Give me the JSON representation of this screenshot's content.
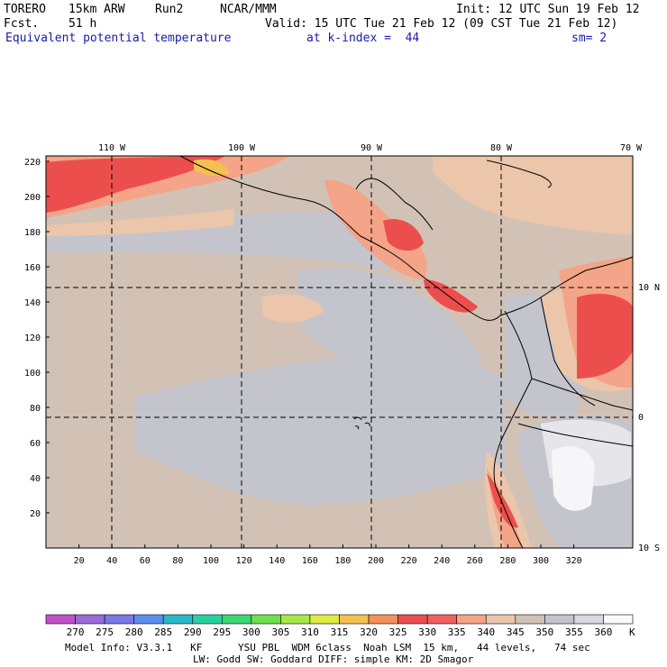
{
  "header": {
    "model": "TORERO",
    "resolution": "15km ARW",
    "run": "Run2",
    "org": "NCAR/MMM",
    "init": "Init: 12 UTC Sun 19 Feb 12",
    "fcst_label": "Fcst.",
    "fcst_value": "51 h",
    "valid": "Valid: 15 UTC Tue 21 Feb 12 (09 CST Tue 21 Feb 12)",
    "field": "Equivalent potential temperature",
    "level": "at k-index =  44",
    "smoothing": "sm= 2"
  },
  "map": {
    "lon_labels": [
      "110 W",
      "100 W",
      "90 W",
      "80 W",
      "70 W"
    ],
    "lat_labels": [
      "10 N",
      "0",
      "10 S"
    ],
    "x_ticks": [
      "20",
      "40",
      "60",
      "80",
      "100",
      "120",
      "140",
      "160",
      "180",
      "200",
      "220",
      "240",
      "260",
      "280",
      "300",
      "320"
    ],
    "y_ticks": [
      "20",
      "40",
      "60",
      "80",
      "100",
      "120",
      "140",
      "160",
      "180",
      "200",
      "220"
    ]
  },
  "colorbar": {
    "labels": [
      "270",
      "275",
      "280",
      "285",
      "290",
      "295",
      "300",
      "305",
      "310",
      "315",
      "320",
      "325",
      "330",
      "335",
      "340",
      "345",
      "350",
      "355",
      "360"
    ],
    "unit": "K",
    "colors": [
      "#c050c8",
      "#9a6ad8",
      "#7a78e6",
      "#5a8ef0",
      "#2ab8c8",
      "#28d0a0",
      "#3ad872",
      "#6ee050",
      "#a6e848",
      "#dcec44",
      "#f4c050",
      "#f4905a",
      "#ec4e4e",
      "#f06060",
      "#f4a488",
      "#ecc6aa",
      "#d2c2b6",
      "#c4c4cc",
      "#d8d8de",
      "#fafafa"
    ]
  },
  "footer": {
    "line1": "Model Info: V3.3.1   KF      YSU PBL  WDM 6class  Noah LSM  15 km,   44 levels,   74 sec",
    "line2": "LW: Godd SW: Goddard DIFF: simple KM: 2D Smagor"
  }
}
